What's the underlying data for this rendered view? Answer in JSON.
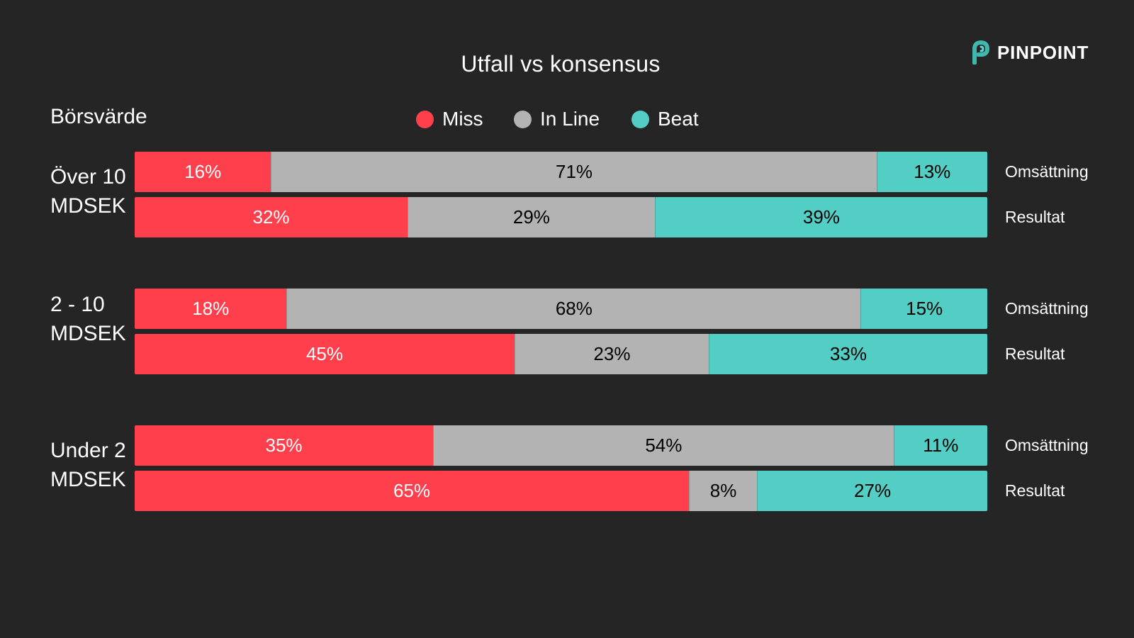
{
  "brand": {
    "name": "PINPOINT",
    "icon": "pinpoint-p-logo-icon",
    "icon_colors": [
      "#3fb7ad",
      "#5fd9cf"
    ]
  },
  "chart_data": {
    "type": "bar",
    "orientation": "horizontal",
    "stacked": true,
    "normalized": true,
    "title": "Utfall vs konsensus",
    "group_axis_title": "Börsvärde",
    "legend_position": "top",
    "grid": false,
    "series": [
      {
        "name": "Miss",
        "color": "#ff3f4c",
        "text_color": "#ffffff"
      },
      {
        "name": "In Line",
        "color": "#b3b3b3",
        "text_color": "#000000"
      },
      {
        "name": "Beat",
        "color": "#52cec5",
        "text_color": "#000000"
      }
    ],
    "groups": [
      {
        "label_lines": [
          "Över 10",
          "MDSEK"
        ],
        "rows": [
          {
            "label": "Omsättning",
            "values": [
              16,
              71,
              13
            ],
            "value_labels": [
              "16%",
              "71%",
              "13%"
            ]
          },
          {
            "label": "Resultat",
            "values": [
              32,
              29,
              39
            ],
            "value_labels": [
              "32%",
              "29%",
              "39%"
            ]
          }
        ]
      },
      {
        "label_lines": [
          "2 - 10",
          "MDSEK"
        ],
        "rows": [
          {
            "label": "Omsättning",
            "values": [
              18,
              68,
              15
            ],
            "value_labels": [
              "18%",
              "68%",
              "15%"
            ]
          },
          {
            "label": "Resultat",
            "values": [
              45,
              23,
              33
            ],
            "value_labels": [
              "45%",
              "23%",
              "33%"
            ]
          }
        ]
      },
      {
        "label_lines": [
          "Under 2",
          "MDSEK"
        ],
        "rows": [
          {
            "label": "Omsättning",
            "values": [
              35,
              54,
              11
            ],
            "value_labels": [
              "35%",
              "54%",
              "11%"
            ]
          },
          {
            "label": "Resultat",
            "values": [
              65,
              8,
              27
            ],
            "value_labels": [
              "65%",
              "8%",
              "27%"
            ]
          }
        ]
      }
    ]
  }
}
